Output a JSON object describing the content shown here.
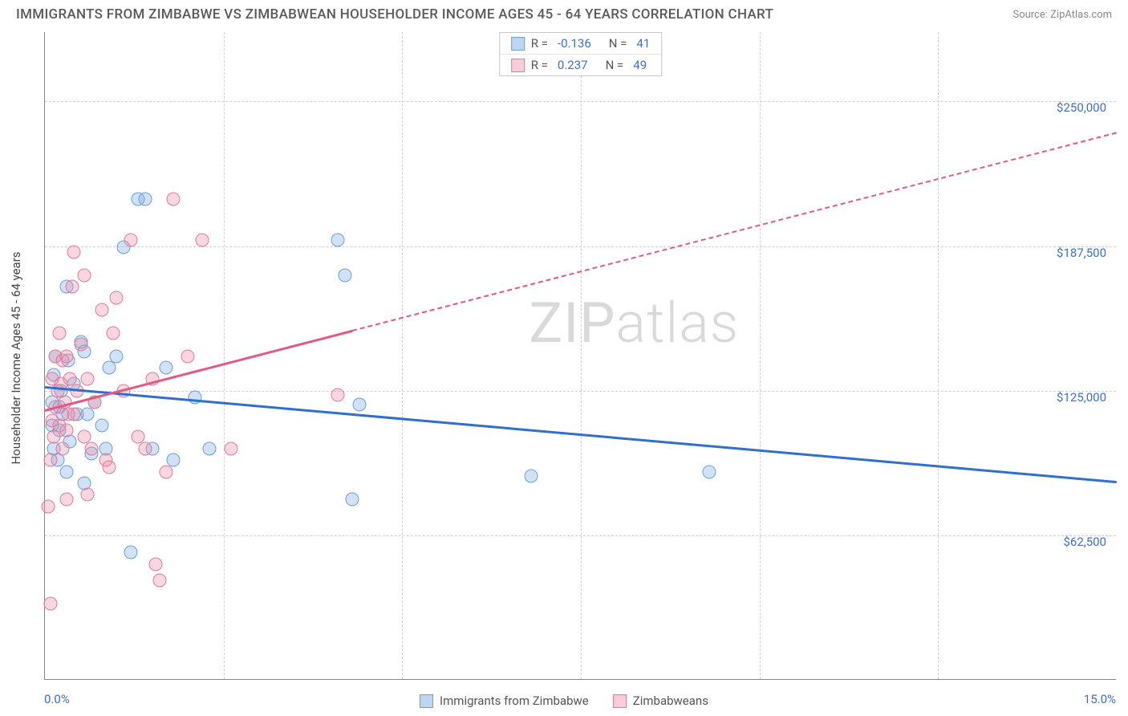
{
  "title": "IMMIGRANTS FROM ZIMBABWE VS ZIMBABWEAN HOUSEHOLDER INCOME AGES 45 - 64 YEARS CORRELATION CHART",
  "source_label": "Source: ZipAtlas.com",
  "watermark_a": "ZIP",
  "watermark_b": "atlas",
  "y_axis_title": "Householder Income Ages 45 - 64 years",
  "chart": {
    "type": "scatter",
    "xlim": [
      0,
      15
    ],
    "ylim": [
      0,
      280000
    ],
    "x_ticks": [
      {
        "pos": 0,
        "label": "0.0%"
      },
      {
        "pos": 15,
        "label": "15.0%"
      }
    ],
    "x_minor_ticks": [
      2.5,
      5.0,
      7.5,
      10.0,
      12.5
    ],
    "y_ticks": [
      {
        "pos": 62500,
        "label": "$62,500"
      },
      {
        "pos": 125000,
        "label": "$125,000"
      },
      {
        "pos": 187500,
        "label": "$187,500"
      },
      {
        "pos": 250000,
        "label": "$250,000"
      }
    ],
    "background_color": "#ffffff",
    "grid_color": "#d0d0d0",
    "point_radius": 8.5,
    "series": [
      {
        "key": "immigrants",
        "label": "Immigrants from Zimbabwe",
        "fill": "rgba(122,171,230,0.35)",
        "stroke": "#6a9fd8",
        "swatch_fill": "#bfd6f2",
        "swatch_border": "#6a9fd8",
        "R": "-0.136",
        "N": "41",
        "trend": {
          "x1": 0,
          "y1": 127000,
          "x2": 15,
          "y2": 86000,
          "max_x": 15,
          "color": "#2f6fd0"
        },
        "points": [
          [
            0.1,
            110000
          ],
          [
            0.1,
            120000
          ],
          [
            0.12,
            100000
          ],
          [
            0.12,
            132000
          ],
          [
            0.15,
            140000
          ],
          [
            0.18,
            95000
          ],
          [
            0.2,
            108000
          ],
          [
            0.2,
            118000
          ],
          [
            0.22,
            125000
          ],
          [
            0.25,
            115000
          ],
          [
            0.3,
            90000
          ],
          [
            0.3,
            170000
          ],
          [
            0.32,
            138000
          ],
          [
            0.35,
            103000
          ],
          [
            0.4,
            128000
          ],
          [
            0.45,
            115000
          ],
          [
            0.5,
            146000
          ],
          [
            0.55,
            85000
          ],
          [
            0.55,
            142000
          ],
          [
            0.6,
            115000
          ],
          [
            0.65,
            98000
          ],
          [
            0.7,
            120000
          ],
          [
            0.8,
            110000
          ],
          [
            0.85,
            100000
          ],
          [
            0.9,
            135000
          ],
          [
            1.0,
            140000
          ],
          [
            1.1,
            187000
          ],
          [
            1.2,
            55000
          ],
          [
            1.3,
            208000
          ],
          [
            1.4,
            208000
          ],
          [
            1.5,
            100000
          ],
          [
            1.7,
            135000
          ],
          [
            1.8,
            95000
          ],
          [
            2.1,
            122000
          ],
          [
            2.3,
            100000
          ],
          [
            4.1,
            190000
          ],
          [
            4.2,
            175000
          ],
          [
            4.3,
            78000
          ],
          [
            6.8,
            88000
          ],
          [
            9.3,
            90000
          ],
          [
            4.4,
            119000
          ]
        ]
      },
      {
        "key": "zimbabweans",
        "label": "Zimbabweans",
        "fill": "rgba(235,140,165,0.35)",
        "stroke": "#e07b98",
        "swatch_fill": "#f6cdd8",
        "swatch_border": "#e07b98",
        "R": "0.237",
        "N": "49",
        "trend": {
          "x1": 0,
          "y1": 117000,
          "x2": 15,
          "y2": 237000,
          "max_x": 4.3,
          "color": "#e05a85"
        },
        "points": [
          [
            0.05,
            75000
          ],
          [
            0.08,
            95000
          ],
          [
            0.1,
            112000
          ],
          [
            0.1,
            130000
          ],
          [
            0.12,
            105000
          ],
          [
            0.15,
            118000
          ],
          [
            0.15,
            140000
          ],
          [
            0.18,
            125000
          ],
          [
            0.2,
            110000
          ],
          [
            0.2,
            150000
          ],
          [
            0.22,
            128000
          ],
          [
            0.25,
            100000
          ],
          [
            0.25,
            138000
          ],
          [
            0.28,
            120000
          ],
          [
            0.3,
            108000
          ],
          [
            0.3,
            140000
          ],
          [
            0.32,
            115000
          ],
          [
            0.35,
            130000
          ],
          [
            0.38,
            170000
          ],
          [
            0.4,
            115000
          ],
          [
            0.4,
            185000
          ],
          [
            0.45,
            125000
          ],
          [
            0.5,
            145000
          ],
          [
            0.55,
            105000
          ],
          [
            0.55,
            175000
          ],
          [
            0.6,
            130000
          ],
          [
            0.65,
            100000
          ],
          [
            0.7,
            120000
          ],
          [
            0.8,
            160000
          ],
          [
            0.85,
            95000
          ],
          [
            0.9,
            92000
          ],
          [
            0.95,
            150000
          ],
          [
            1.0,
            165000
          ],
          [
            1.1,
            125000
          ],
          [
            1.2,
            190000
          ],
          [
            1.3,
            105000
          ],
          [
            1.4,
            100000
          ],
          [
            1.5,
            130000
          ],
          [
            1.6,
            43000
          ],
          [
            1.7,
            90000
          ],
          [
            1.8,
            208000
          ],
          [
            2.0,
            140000
          ],
          [
            2.2,
            190000
          ],
          [
            4.1,
            123000
          ],
          [
            0.08,
            33000
          ],
          [
            0.3,
            78000
          ],
          [
            0.6,
            80000
          ],
          [
            1.55,
            50000
          ],
          [
            2.6,
            100000
          ]
        ]
      }
    ]
  }
}
